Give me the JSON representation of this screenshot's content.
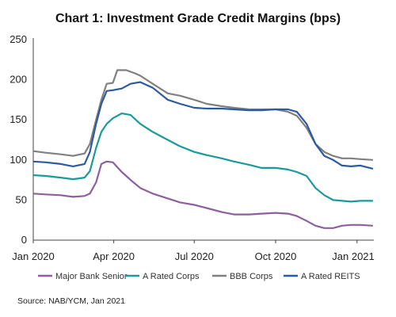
{
  "chart_data": {
    "type": "line",
    "title": "Chart 1: Investment Grade Credit Margins (bps)",
    "xlabel": "",
    "ylabel": "",
    "xlim": [
      "2020-01-01",
      "2021-01-20"
    ],
    "ylim": [
      0,
      250
    ],
    "yticks": [
      0,
      50,
      100,
      150,
      200,
      250
    ],
    "xticks": [
      {
        "date": "2020-01-01",
        "label": "Jan 2020"
      },
      {
        "date": "2020-04-01",
        "label": "Apr 2020"
      },
      {
        "date": "2020-07-01",
        "label": "Jul 2020"
      },
      {
        "date": "2020-10-01",
        "label": "Oct 2020"
      },
      {
        "date": "2021-01-01",
        "label": "Jan 2021"
      }
    ],
    "grid": false,
    "legend_position": "bottom",
    "series": [
      {
        "name": "Major Bank Senior",
        "color": "#8e5f9e",
        "points": [
          [
            "2020-01-01",
            58
          ],
          [
            "2020-01-15",
            57
          ],
          [
            "2020-02-01",
            56
          ],
          [
            "2020-02-15",
            54
          ],
          [
            "2020-02-28",
            55
          ],
          [
            "2020-03-05",
            58
          ],
          [
            "2020-03-12",
            72
          ],
          [
            "2020-03-18",
            95
          ],
          [
            "2020-03-24",
            98
          ],
          [
            "2020-03-31",
            97
          ],
          [
            "2020-04-10",
            85
          ],
          [
            "2020-04-20",
            75
          ],
          [
            "2020-05-01",
            65
          ],
          [
            "2020-05-15",
            58
          ],
          [
            "2020-06-01",
            52
          ],
          [
            "2020-06-15",
            47
          ],
          [
            "2020-07-01",
            44
          ],
          [
            "2020-07-15",
            40
          ],
          [
            "2020-08-01",
            35
          ],
          [
            "2020-08-15",
            32
          ],
          [
            "2020-09-01",
            32
          ],
          [
            "2020-09-15",
            33
          ],
          [
            "2020-10-01",
            34
          ],
          [
            "2020-10-15",
            33
          ],
          [
            "2020-10-25",
            30
          ],
          [
            "2020-11-05",
            24
          ],
          [
            "2020-11-15",
            18
          ],
          [
            "2020-11-25",
            15
          ],
          [
            "2020-12-05",
            15
          ],
          [
            "2020-12-15",
            18
          ],
          [
            "2020-12-25",
            19
          ],
          [
            "2021-01-05",
            19
          ],
          [
            "2021-01-19",
            18
          ]
        ]
      },
      {
        "name": "A Rated Corps",
        "color": "#1a9a9a",
        "points": [
          [
            "2020-01-01",
            81
          ],
          [
            "2020-01-15",
            80
          ],
          [
            "2020-02-01",
            78
          ],
          [
            "2020-02-15",
            76
          ],
          [
            "2020-02-28",
            78
          ],
          [
            "2020-03-05",
            86
          ],
          [
            "2020-03-12",
            115
          ],
          [
            "2020-03-18",
            135
          ],
          [
            "2020-03-24",
            145
          ],
          [
            "2020-03-31",
            152
          ],
          [
            "2020-04-10",
            158
          ],
          [
            "2020-04-20",
            156
          ],
          [
            "2020-05-01",
            145
          ],
          [
            "2020-05-15",
            135
          ],
          [
            "2020-06-01",
            125
          ],
          [
            "2020-06-15",
            117
          ],
          [
            "2020-07-01",
            110
          ],
          [
            "2020-07-15",
            106
          ],
          [
            "2020-08-01",
            102
          ],
          [
            "2020-08-15",
            98
          ],
          [
            "2020-09-01",
            94
          ],
          [
            "2020-09-15",
            90
          ],
          [
            "2020-10-01",
            90
          ],
          [
            "2020-10-15",
            88
          ],
          [
            "2020-10-25",
            85
          ],
          [
            "2020-11-05",
            80
          ],
          [
            "2020-11-15",
            65
          ],
          [
            "2020-11-25",
            56
          ],
          [
            "2020-12-05",
            50
          ],
          [
            "2020-12-15",
            49
          ],
          [
            "2020-12-25",
            48
          ],
          [
            "2021-01-05",
            49
          ],
          [
            "2021-01-19",
            49
          ]
        ]
      },
      {
        "name": "BBB Corps",
        "color": "#808080",
        "points": [
          [
            "2020-01-01",
            111
          ],
          [
            "2020-01-15",
            109
          ],
          [
            "2020-02-01",
            107
          ],
          [
            "2020-02-15",
            105
          ],
          [
            "2020-02-28",
            108
          ],
          [
            "2020-03-05",
            120
          ],
          [
            "2020-03-12",
            150
          ],
          [
            "2020-03-18",
            175
          ],
          [
            "2020-03-24",
            195
          ],
          [
            "2020-03-31",
            196
          ],
          [
            "2020-04-05",
            212
          ],
          [
            "2020-04-15",
            212
          ],
          [
            "2020-04-25",
            208
          ],
          [
            "2020-05-01",
            205
          ],
          [
            "2020-05-15",
            195
          ],
          [
            "2020-06-01",
            183
          ],
          [
            "2020-06-15",
            180
          ],
          [
            "2020-07-01",
            175
          ],
          [
            "2020-07-15",
            170
          ],
          [
            "2020-08-01",
            167
          ],
          [
            "2020-08-15",
            165
          ],
          [
            "2020-09-01",
            163
          ],
          [
            "2020-09-15",
            163
          ],
          [
            "2020-10-01",
            163
          ],
          [
            "2020-10-15",
            160
          ],
          [
            "2020-10-25",
            155
          ],
          [
            "2020-11-05",
            140
          ],
          [
            "2020-11-15",
            120
          ],
          [
            "2020-11-25",
            110
          ],
          [
            "2020-12-05",
            105
          ],
          [
            "2020-12-15",
            102
          ],
          [
            "2020-12-25",
            102
          ],
          [
            "2021-01-05",
            101
          ],
          [
            "2021-01-19",
            100
          ]
        ]
      },
      {
        "name": "A Rated REITS",
        "color": "#2c5aa0",
        "points": [
          [
            "2020-01-01",
            98
          ],
          [
            "2020-01-15",
            97
          ],
          [
            "2020-02-01",
            95
          ],
          [
            "2020-02-15",
            92
          ],
          [
            "2020-02-28",
            95
          ],
          [
            "2020-03-05",
            110
          ],
          [
            "2020-03-12",
            145
          ],
          [
            "2020-03-18",
            170
          ],
          [
            "2020-03-24",
            186
          ],
          [
            "2020-03-31",
            187
          ],
          [
            "2020-04-10",
            189
          ],
          [
            "2020-04-20",
            195
          ],
          [
            "2020-05-01",
            197
          ],
          [
            "2020-05-15",
            190
          ],
          [
            "2020-06-01",
            175
          ],
          [
            "2020-06-15",
            170
          ],
          [
            "2020-07-01",
            165
          ],
          [
            "2020-07-15",
            164
          ],
          [
            "2020-08-01",
            164
          ],
          [
            "2020-08-15",
            163
          ],
          [
            "2020-09-01",
            162
          ],
          [
            "2020-09-15",
            162
          ],
          [
            "2020-10-01",
            163
          ],
          [
            "2020-10-15",
            163
          ],
          [
            "2020-10-25",
            160
          ],
          [
            "2020-11-05",
            145
          ],
          [
            "2020-11-15",
            120
          ],
          [
            "2020-11-25",
            105
          ],
          [
            "2020-12-05",
            100
          ],
          [
            "2020-12-15",
            93
          ],
          [
            "2020-12-25",
            92
          ],
          [
            "2021-01-05",
            93
          ],
          [
            "2021-01-19",
            89
          ]
        ]
      }
    ],
    "source": "Source: NAB/YCM, Jan 2021"
  }
}
